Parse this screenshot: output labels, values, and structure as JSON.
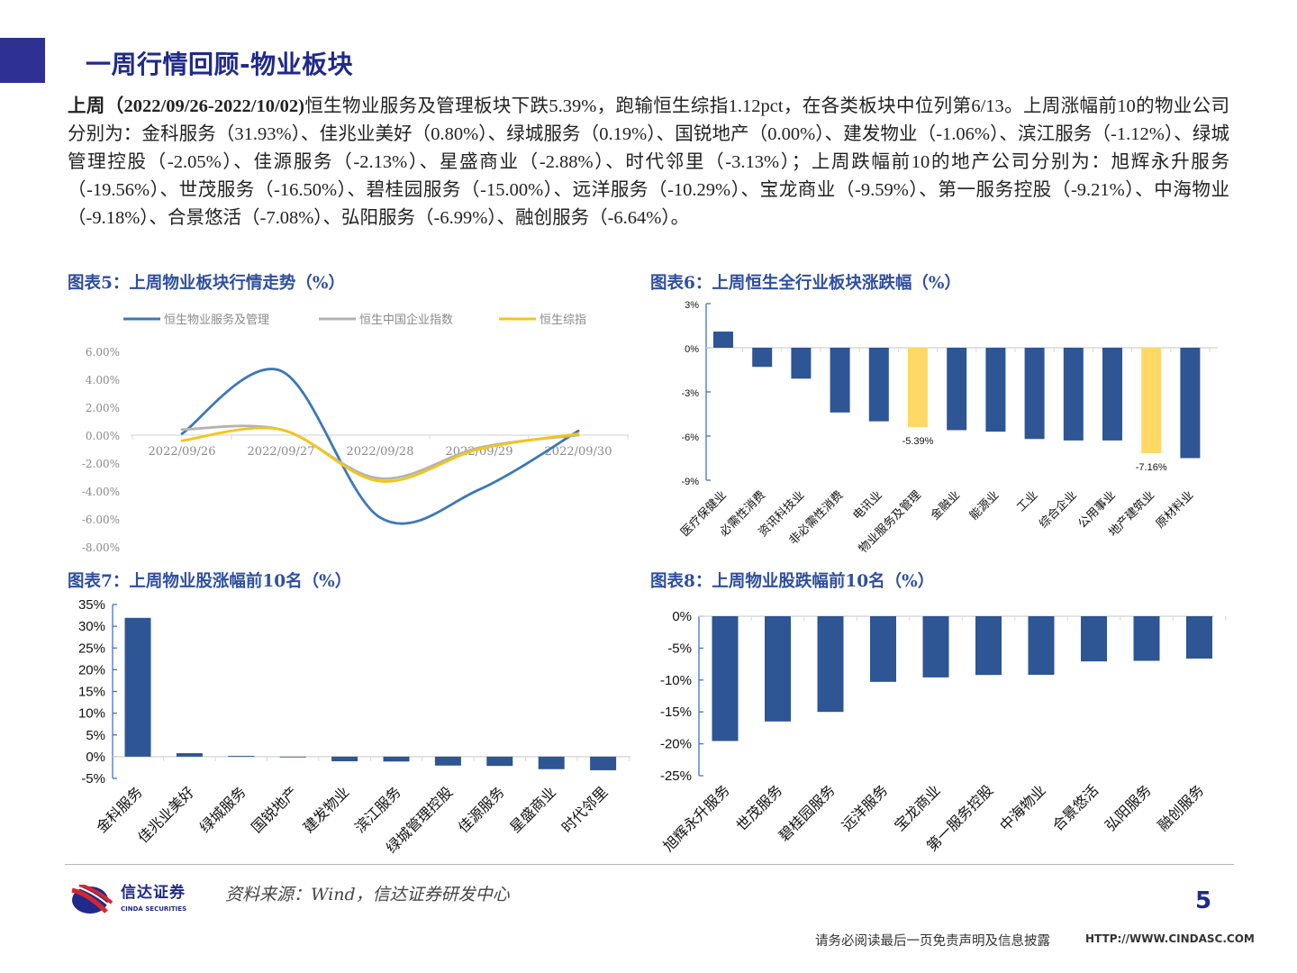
{
  "header": {
    "title": "一周行情回顾-物业板块",
    "accent_color": "#2e3192"
  },
  "summary": {
    "lead": "上周（2022/09/26-2022/10/02)",
    "body": "恒生物业服务及管理板块下跌5.39%，跑输恒生综指1.12pct，在各类板块中位列第6/13。上周涨幅前10的物业公司分别为：金科服务（31.93%）、佳兆业美好（0.80%）、绿城服务（0.19%）、国锐地产（0.00%）、建发物业（-1.06%）、滨江服务（-1.12%）、绿城管理控股（-2.05%）、佳源服务（-2.13%）、星盛商业（-2.88%）、时代邻里（-3.13%）；上周跌幅前10的地产公司分别为：旭辉永升服务（-19.56%）、世茂服务（-16.50%）、碧桂园服务（-15.00%）、远洋服务（-10.29%）、宝龙商业（-9.59%）、第一服务控股（-9.21%）、中海物业（-9.18%）、合景悠活（-7.08%）、弘阳服务（-6.99%）、融创服务（-6.64%）。"
  },
  "chart_data": [
    {
      "id": "fig5",
      "title": "图表5：上周物业板块行情走势（%）",
      "type": "line",
      "smooth": true,
      "categories": [
        "2022/09/26",
        "2022/09/27",
        "2022/09/28",
        "2022/09/29",
        "2022/09/30"
      ],
      "yticks": [
        "6.00%",
        "4.00%",
        "2.00%",
        "0.00%",
        "-2.00%",
        "-4.00%",
        "-6.00%",
        "-8.00%"
      ],
      "ylim": [
        -8,
        6
      ],
      "legend_position": "top",
      "series": [
        {
          "name": "恒生物业服务及管理",
          "color": "#3b78b8",
          "values": [
            0.1,
            4.6,
            -5.9,
            -3.9,
            0.3
          ]
        },
        {
          "name": "恒生中国企业指数",
          "color": "#b3b3b3",
          "values": [
            0.4,
            0.4,
            -3.1,
            -0.9,
            0.0
          ]
        },
        {
          "name": "恒生综指",
          "color": "#f5c518",
          "values": [
            -0.4,
            0.4,
            -3.3,
            -1.0,
            0.1
          ]
        }
      ]
    },
    {
      "id": "fig6",
      "title": "图表6：上周恒生全行业板块涨跌幅（%）",
      "type": "bar",
      "categories": [
        "医疗保健业",
        "必需性消费",
        "资讯科技业",
        "非必需性消费",
        "电讯业",
        "物业服务及管理",
        "金融业",
        "能源业",
        "工业",
        "综合企业",
        "公用事业",
        "地产建筑业",
        "原材料业"
      ],
      "values": [
        1.1,
        -1.3,
        -2.1,
        -4.4,
        -5.0,
        -5.39,
        -5.6,
        -5.7,
        -6.2,
        -6.3,
        -6.3,
        -7.16,
        -7.5
      ],
      "highlight": [
        5,
        11
      ],
      "data_labels": {
        "5": "-5.39%",
        "11": "-7.16%"
      },
      "yticks": [
        "3%",
        "0%",
        "-3%",
        "-6%",
        "-9%"
      ],
      "ylim": [
        -9,
        3
      ],
      "bar_color": "#2e5594",
      "highlight_color": "#ffd966"
    },
    {
      "id": "fig7",
      "title": "图表7：上周物业股涨幅前10名（%）",
      "type": "bar",
      "categories": [
        "金科服务",
        "佳兆业美好",
        "绿城服务",
        "国锐地产",
        "建发物业",
        "滨江服务",
        "绿城管理控股",
        "佳源服务",
        "星盛商业",
        "时代邻里"
      ],
      "values": [
        31.93,
        0.8,
        0.19,
        0.0,
        -1.06,
        -1.12,
        -2.05,
        -2.13,
        -2.88,
        -3.13
      ],
      "yticks": [
        "35%",
        "30%",
        "25%",
        "20%",
        "15%",
        "10%",
        "5%",
        "0%",
        "-5%"
      ],
      "ylim": [
        -5,
        35
      ],
      "bar_color": "#2e5594"
    },
    {
      "id": "fig8",
      "title": "图表8：上周物业股跌幅前10名（%）",
      "type": "bar",
      "categories": [
        "旭辉永升服务",
        "世茂服务",
        "碧桂园服务",
        "远洋服务",
        "宝龙商业",
        "第一服务控股",
        "中海物业",
        "合景悠活",
        "弘阳服务",
        "融创服务"
      ],
      "values": [
        -19.56,
        -16.5,
        -15.0,
        -10.29,
        -9.59,
        -9.21,
        -9.18,
        -7.08,
        -6.99,
        -6.64
      ],
      "yticks": [
        "0%",
        "-5%",
        "-10%",
        "-15%",
        "-20%",
        "-25%"
      ],
      "ylim": [
        -25,
        0
      ],
      "bar_color": "#2e5594"
    }
  ],
  "footer": {
    "source": "资料来源：Wind，信达证券研发中心",
    "page_number": "5",
    "logo_cn": "信达证券",
    "logo_en": "CINDA SECURITIES",
    "disclaimer": "请务必阅读最后一页免责声明及信息披露",
    "url": "HTTP://WWW.CINDASC.COM"
  }
}
